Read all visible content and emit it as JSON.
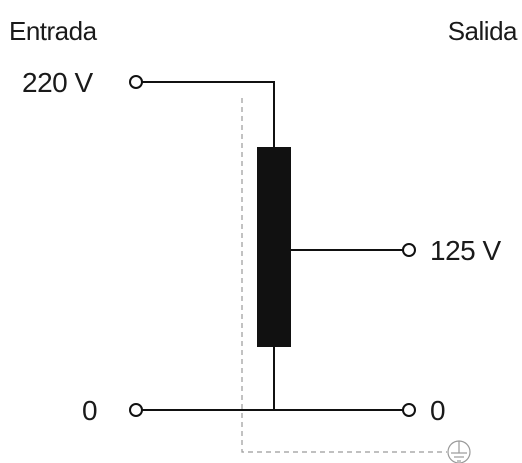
{
  "diagram": {
    "header_input": "Entrada",
    "header_output": "Salida",
    "input_top_label": "220 V",
    "input_bottom_label": "0",
    "output_tap_label": "125 V",
    "output_bottom_label": "0",
    "icons": {
      "ground": "ground-icon",
      "terminal": "terminal-circle-icon"
    },
    "colors": {
      "lines": "#111111",
      "winding": "#111111",
      "ground_dashed": "#9a9a9a",
      "text": "#1a1a1a",
      "background": "#ffffff"
    }
  }
}
